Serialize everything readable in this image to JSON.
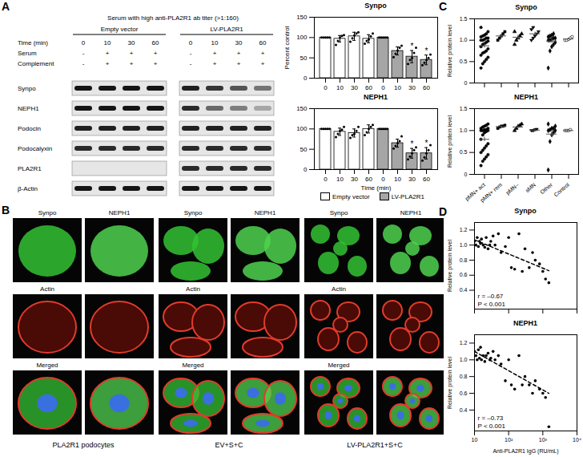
{
  "panel_labels": [
    "A",
    "B",
    "C",
    "D"
  ],
  "blot": {
    "title": "Serum with high anti-PLA2R1 ab titer (>1:160)",
    "groups": [
      "Empty vector",
      "LV-PLA2R1"
    ],
    "conditions": [
      {
        "name": "Time (min)",
        "values": [
          "0",
          "10",
          "30",
          "60",
          "0",
          "10",
          "30",
          "60"
        ]
      },
      {
        "name": "Serum",
        "values": [
          "-",
          "+",
          "+",
          "+",
          "-",
          "+",
          "+",
          "+"
        ]
      },
      {
        "name": "Complement",
        "values": [
          "-",
          "+",
          "+",
          "+",
          "-",
          "+",
          "+",
          "+"
        ]
      }
    ],
    "bands": [
      {
        "name": "Synpo",
        "intensity": [
          1,
          1,
          1,
          1,
          0.95,
          0.85,
          0.7,
          0.55
        ]
      },
      {
        "name": "NEPH1",
        "intensity": [
          1,
          1,
          1,
          1,
          0.9,
          0.6,
          0.5,
          0.3
        ]
      },
      {
        "name": "Podocin",
        "intensity": [
          0.95,
          0.95,
          0.95,
          0.95,
          0.95,
          0.95,
          0.95,
          0.95
        ]
      },
      {
        "name": "Podocalyxin",
        "intensity": [
          0.9,
          0.9,
          0.9,
          0.9,
          0.9,
          0.9,
          0.9,
          0.9
        ]
      },
      {
        "name": "PLA2R1",
        "intensity": [
          0,
          0,
          0,
          0,
          0.9,
          0.9,
          0.9,
          0.9
        ]
      },
      {
        "name": "β-Actin",
        "intensity": [
          1,
          1,
          1,
          1,
          1,
          1,
          1,
          1
        ]
      }
    ]
  },
  "micrographs": {
    "columns": [
      "Synpo",
      "NEPH1"
    ],
    "rows": [
      "Actin",
      "Merged"
    ],
    "conditions": [
      "PLA2R1 podocytes",
      "EV+S+C",
      "LV-PLA2R1+S+C"
    ]
  },
  "chart_data": [
    {
      "type": "bar",
      "title": "Synpo",
      "categories": [
        "0",
        "10",
        "30",
        "60"
      ],
      "ylabel": "Percent control",
      "ylim": [
        0,
        150
      ],
      "yticks": [
        0,
        50,
        100,
        150
      ],
      "series": [
        {
          "name": "Empty vector",
          "color": "#ffffff",
          "values": [
            100,
            97,
            103,
            97
          ],
          "error": [
            0,
            8,
            10,
            10
          ],
          "points": [
            [
              100,
              100,
              100,
              100,
              100
            ],
            [
              82,
              92,
              100,
              104,
              106
            ],
            [
              90,
              98,
              105,
              110,
              113
            ],
            [
              85,
              92,
              95,
              103,
              110
            ]
          ]
        },
        {
          "name": "LV-PLA2R1",
          "color": "#a6a6a6",
          "values": [
            100,
            67,
            53,
            45
          ],
          "error": [
            0,
            10,
            15,
            12
          ],
          "points": [
            [
              100,
              100,
              100,
              100,
              100
            ],
            [
              52,
              60,
              68,
              75,
              80
            ],
            [
              35,
              45,
              50,
              62,
              75
            ],
            [
              32,
              38,
              45,
              50,
              58
            ]
          ],
          "significance": [
            null,
            null,
            "*",
            "*"
          ]
        }
      ]
    },
    {
      "type": "bar",
      "title": "NEPH1",
      "categories": [
        "0",
        "10",
        "30",
        "60"
      ],
      "xlabel": "Time (min)",
      "ylim": [
        0,
        150
      ],
      "yticks": [
        0,
        50,
        100,
        150
      ],
      "legend": "bottom",
      "series": [
        {
          "name": "Empty vector",
          "color": "#ffffff",
          "values": [
            100,
            93,
            90,
            100
          ],
          "error": [
            0,
            9,
            10,
            10
          ],
          "points": [
            [
              100,
              100,
              100,
              100,
              100
            ],
            [
              80,
              88,
              95,
              98,
              105
            ],
            [
              78,
              85,
              88,
              95,
              105
            ],
            [
              85,
              92,
              100,
              105,
              110
            ]
          ]
        },
        {
          "name": "LV-PLA2R1",
          "color": "#a6a6a6",
          "values": [
            100,
            65,
            40,
            40
          ],
          "error": [
            0,
            10,
            12,
            14
          ],
          "points": [
            [
              100,
              100,
              100,
              100,
              100
            ],
            [
              52,
              58,
              65,
              70,
              82
            ],
            [
              25,
              32,
              40,
              48,
              55
            ],
            [
              22,
              30,
              40,
              48,
              60
            ]
          ],
          "significance": [
            null,
            null,
            "*",
            "*"
          ]
        }
      ]
    },
    {
      "type": "dot",
      "title": "Synpo",
      "ylabel": "Relative protein level",
      "ylim": [
        0,
        1.5
      ],
      "yticks": [
        0,
        0.5,
        {
          "value": 1,
          "label": "1.0"
        },
        1.5
      ],
      "tick_labels": "y",
      "series": [
        {
          "name": "pMN+ act",
          "marker": "circle",
          "mean": 0.87,
          "error": 0.05,
          "values": [
            0.35,
            0.45,
            0.5,
            0.55,
            0.6,
            0.65,
            0.7,
            0.72,
            0.75,
            0.8,
            0.85,
            0.9,
            0.92,
            0.95,
            0.98,
            1.0,
            1.0,
            1.02,
            1.05,
            1.05,
            1.08,
            1.1,
            1.12,
            1.15,
            1.2,
            1.3
          ]
        },
        {
          "name": "pMN+ rem",
          "marker": "square",
          "mean": 1.1,
          "error": 0.04,
          "values": [
            1.0,
            1.05,
            1.1,
            1.15,
            1.2
          ]
        },
        {
          "name": "pMN–",
          "marker": "triangle",
          "mean": 1.07,
          "error": 0.05,
          "values": [
            0.9,
            1.0,
            1.05,
            1.1,
            1.15,
            1.2
          ]
        },
        {
          "name": "sMN",
          "marker": "triangle-down",
          "mean": 1.15,
          "error": 0.04,
          "values": [
            1.0,
            1.05,
            1.1,
            1.15,
            1.2,
            1.25,
            1.3
          ]
        },
        {
          "name": "Other",
          "marker": "diamond",
          "mean": 0.98,
          "error": 0.05,
          "values": [
            0.35,
            0.75,
            0.85,
            0.9,
            0.95,
            1.0,
            1.0,
            1.02,
            1.05,
            1.05,
            1.08,
            1.1,
            1.12,
            1.15
          ]
        },
        {
          "name": "Control",
          "marker": "circle-open",
          "mean": 1.03,
          "error": 0.02,
          "values": [
            1.0,
            1.0,
            1.02,
            1.05,
            1.08
          ]
        }
      ]
    },
    {
      "type": "dot",
      "title": "NEPH1",
      "ylabel": "Relative protein level",
      "ylim": [
        0,
        1.5
      ],
      "yticks": [
        0,
        0.5,
        {
          "value": 1,
          "label": "1.0"
        },
        1.5
      ],
      "series": [
        {
          "name": "pMN+ act",
          "marker": "circle",
          "mean": 0.8,
          "error": 0.05,
          "values": [
            0.2,
            0.3,
            0.35,
            0.4,
            0.45,
            0.5,
            0.55,
            0.6,
            0.65,
            0.7,
            0.8,
            0.9,
            0.95,
            0.98,
            1.0,
            1.0,
            1.0,
            1.02,
            1.02,
            1.05,
            1.05,
            1.08,
            1.1,
            1.12,
            1.15
          ]
        },
        {
          "name": "pMN+ rem",
          "marker": "square",
          "mean": 1.09,
          "error": 0.02,
          "values": [
            1.05,
            1.08,
            1.1,
            1.1,
            1.12
          ]
        },
        {
          "name": "pMN–",
          "marker": "triangle",
          "mean": 1.08,
          "error": 0.03,
          "values": [
            1.0,
            1.05,
            1.1,
            1.12,
            1.15
          ]
        },
        {
          "name": "sMN",
          "marker": "triangle-down",
          "mean": 1.01,
          "error": 0.01,
          "values": [
            1.0,
            1.0,
            1.02,
            1.03
          ]
        },
        {
          "name": "Other",
          "marker": "diamond",
          "mean": 0.92,
          "error": 0.08,
          "values": [
            0.1,
            0.75,
            0.9,
            0.95,
            1.0,
            1.0,
            1.02,
            1.05,
            1.05,
            1.1,
            1.15
          ]
        },
        {
          "name": "Control",
          "marker": "circle-open",
          "mean": 1.0,
          "error": 0.01,
          "values": [
            1.0,
            1.0,
            1.0,
            1.02
          ]
        }
      ]
    },
    {
      "type": "scatter",
      "title": "Synpo",
      "log": "x",
      "ylabel": "Relative protein level",
      "xlim": [
        10,
        10000
      ],
      "xticks": [
        10,
        {
          "value": 100,
          "label": "10²"
        },
        {
          "value": 1000,
          "label": "10³"
        },
        {
          "value": 10000,
          "label": "10⁴"
        }
      ],
      "ylim": [
        0.15,
        1.3
      ],
      "yticks": [
        0.4,
        0.6,
        0.8,
        {
          "value": 1,
          "label": "1.0"
        },
        1.2
      ],
      "tick_labels": "y",
      "x": [
        10,
        11,
        12,
        13,
        14,
        15,
        16,
        18,
        20,
        22,
        25,
        28,
        30,
        35,
        40,
        50,
        60,
        80,
        100,
        120,
        150,
        200,
        250,
        300,
        400,
        500,
        600,
        800,
        1000,
        1200,
        1500
      ],
      "values": [
        1.05,
        1.0,
        1.1,
        0.98,
        1.05,
        1.02,
        1.08,
        1.0,
        0.97,
        1.1,
        0.95,
        1.0,
        1.05,
        1.12,
        1.0,
        1.15,
        0.9,
        0.98,
        1.1,
        0.7,
        0.68,
        1.15,
        0.65,
        0.95,
        0.7,
        0.9,
        0.8,
        0.75,
        0.65,
        0.55,
        0.5
      ],
      "fit": {
        "x": [
          10,
          1500
        ],
        "values": [
          1.07,
          0.66
        ]
      },
      "annotations": [
        "r = –0.67",
        "P < 0.001"
      ]
    },
    {
      "type": "scatter",
      "title": "NEPH1",
      "log": "x",
      "xlabel": "Anti-PLA2R1 IgG (RU/mL)",
      "ylabel": "Relative protein level",
      "xlim": [
        10,
        10000
      ],
      "xticks": [
        10,
        {
          "value": 100,
          "label": "10²"
        },
        {
          "value": 1000,
          "label": "10³"
        },
        {
          "value": 10000,
          "label": "10⁴"
        }
      ],
      "ylim": [
        0.15,
        1.3
      ],
      "yticks": [
        0.4,
        0.6,
        0.8,
        {
          "value": 1,
          "label": "1.0"
        },
        1.2
      ],
      "x": [
        10,
        11,
        12,
        13,
        14,
        15,
        16,
        18,
        20,
        22,
        25,
        28,
        30,
        35,
        40,
        50,
        60,
        80,
        100,
        120,
        150,
        200,
        250,
        300,
        400,
        500,
        600,
        800,
        1000,
        1200,
        1500
      ],
      "values": [
        1.1,
        1.05,
        1.0,
        1.12,
        1.02,
        1.15,
        1.0,
        1.05,
        0.98,
        1.05,
        1.08,
        1.0,
        1.02,
        1.1,
        1.0,
        1.05,
        0.95,
        0.75,
        1.0,
        0.7,
        0.65,
        1.05,
        0.7,
        0.8,
        0.7,
        0.6,
        0.75,
        0.65,
        0.6,
        0.55,
        0.2
      ],
      "fit": {
        "x": [
          10,
          1500
        ],
        "values": [
          1.1,
          0.6
        ]
      },
      "annotations": [
        "r = –0.73",
        "P < 0.001"
      ]
    }
  ]
}
